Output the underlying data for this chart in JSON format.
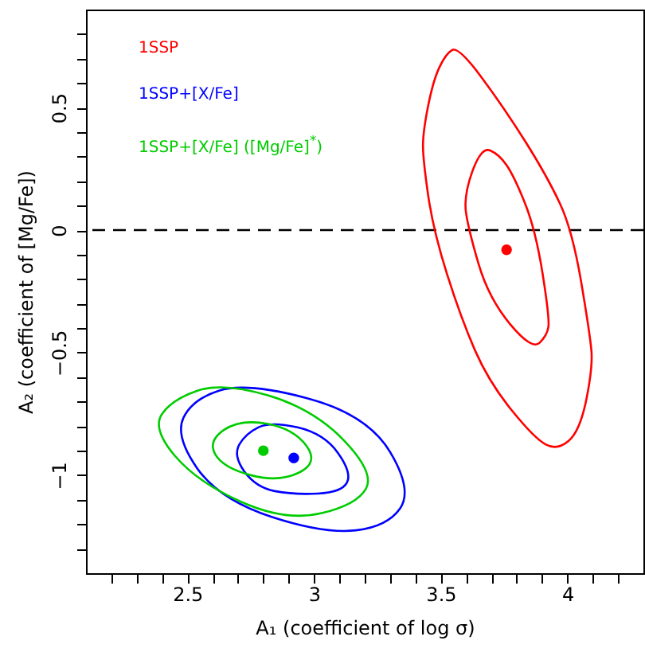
{
  "chart_data": {
    "type": "scatter",
    "xlabel": "A₁ (coefficient of log σ)",
    "ylabel": "A₂ (coefficient of [Mg/Fe])",
    "xlim": [
      2.1,
      4.3
    ],
    "ylim": [
      -1.4,
      0.9
    ],
    "xticks": [
      {
        "value": 2.2,
        "label": null
      },
      {
        "value": 2.3,
        "label": null
      },
      {
        "value": 2.4,
        "label": null
      },
      2.5,
      {
        "value": 2.6,
        "label": null
      },
      {
        "value": 2.7,
        "label": null
      },
      {
        "value": 2.8,
        "label": null
      },
      {
        "value": 2.9,
        "label": null
      },
      3,
      {
        "value": 3.1,
        "label": null
      },
      {
        "value": 3.2,
        "label": null
      },
      {
        "value": 3.3,
        "label": null
      },
      {
        "value": 3.4,
        "label": null
      },
      3.5,
      {
        "value": 3.6,
        "label": null
      },
      {
        "value": 3.7,
        "label": null
      },
      {
        "value": 3.8,
        "label": null
      },
      {
        "value": 3.9,
        "label": null
      },
      4,
      {
        "value": 4.1,
        "label": null
      },
      {
        "value": 4.2,
        "label": null
      }
    ],
    "yticks": [
      {
        "value": -1.3,
        "label": null
      },
      {
        "value": -1.2,
        "label": null
      },
      {
        "value": -1.1,
        "label": null
      },
      -1,
      {
        "value": -0.9,
        "label": null
      },
      {
        "value": -0.8,
        "label": null
      },
      {
        "value": -0.7,
        "label": null
      },
      {
        "value": -0.6,
        "label": null
      },
      -0.5,
      {
        "value": -0.4,
        "label": null
      },
      {
        "value": -0.3,
        "label": null
      },
      {
        "value": -0.2,
        "label": null
      },
      {
        "value": -0.1,
        "label": null
      },
      0,
      {
        "value": 0.1,
        "label": null
      },
      {
        "value": 0.2,
        "label": null
      },
      {
        "value": 0.3,
        "label": null
      },
      {
        "value": 0.4,
        "label": null
      },
      0.5,
      {
        "value": 0.6,
        "label": null
      },
      {
        "value": 0.7,
        "label": null
      },
      {
        "value": 0.8,
        "label": null
      }
    ],
    "grid": false,
    "legend": "top left",
    "ref_lines": [
      {
        "axis": "y",
        "value": 0,
        "color": "#000000",
        "line_style": "dashed"
      }
    ],
    "series": [
      {
        "name": "1SSP",
        "color": "#ff0000",
        "x": [
          3.76
        ],
        "values": [
          -0.08
        ]
      },
      {
        "name": "1SSP+[X/Fe]",
        "color": "#0000ff",
        "x": [
          2.92
        ],
        "values": [
          -0.93
        ]
      },
      {
        "name": "1SSP+[X/Fe] ([Mg/Fe]$^{*}$)",
        "color": "#00cc00",
        "x": [
          2.8
        ],
        "values": [
          -0.9
        ]
      }
    ]
  }
}
